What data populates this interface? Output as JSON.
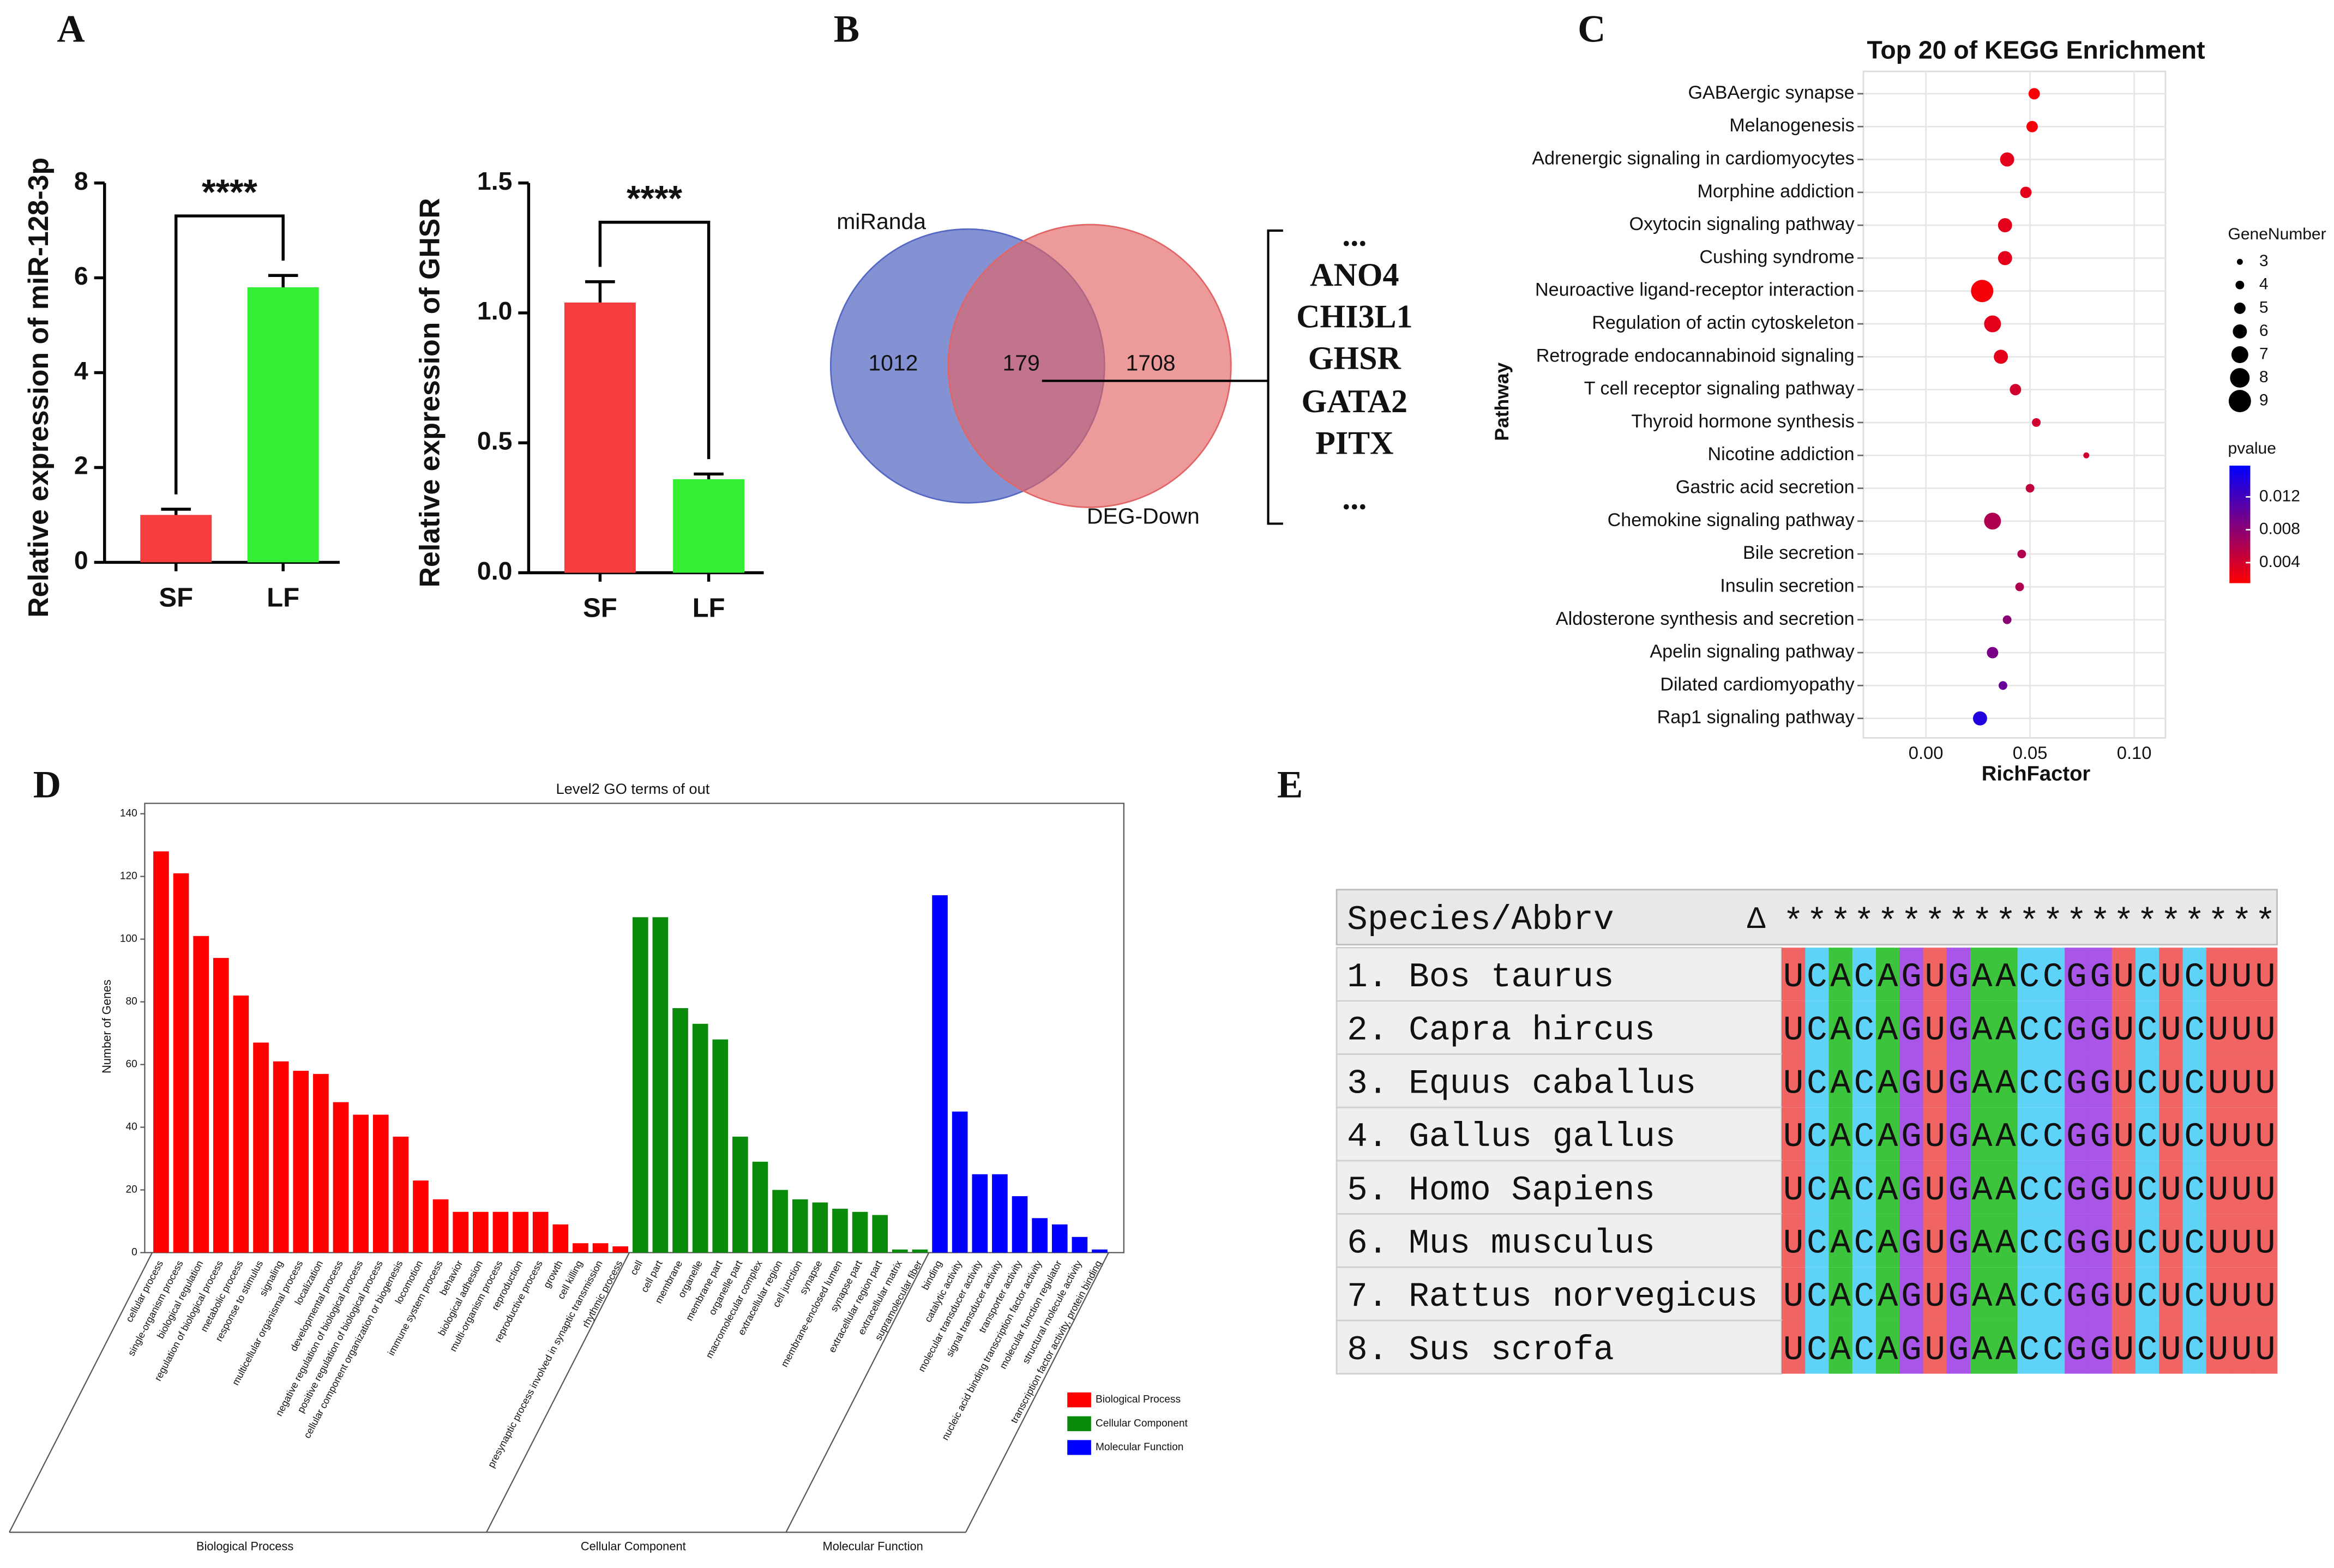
{
  "chart_data": [
    {
      "type": "bar",
      "panel": "A",
      "ylabel": "Relative expression of miR-128-3p",
      "categories": [
        "SF",
        "LF"
      ],
      "values": [
        1.0,
        5.8
      ],
      "errors": [
        0.12,
        0.25
      ],
      "colors": [
        "#f73e3e",
        "#33ee33"
      ],
      "ylim": [
        0,
        8
      ],
      "yticks": [
        0,
        2,
        4,
        6,
        8
      ],
      "significance": "****"
    },
    {
      "type": "bar",
      "ylabel": "Relative expression of GHSR",
      "categories": [
        "SF",
        "LF"
      ],
      "values": [
        1.04,
        0.36
      ],
      "errors": [
        0.08,
        0.02
      ],
      "colors": [
        "#f73e3e",
        "#33ee33"
      ],
      "ylim": [
        0,
        1.5
      ],
      "yticks": [
        {
          "value": 0,
          "label": "0.0"
        },
        {
          "value": 0.5,
          "label": "0.5"
        },
        {
          "value": 1,
          "label": "1.0"
        },
        {
          "value": 1.5,
          "label": "1.5"
        }
      ],
      "significance": "****"
    },
    {
      "type": "venn",
      "panel": "B",
      "sets": [
        {
          "name": "miRanda",
          "color": "#5468c4"
        },
        {
          "name": "DEG-Down",
          "color": "#e26464"
        }
      ],
      "values": [
        1012,
        179,
        1708
      ],
      "genes": [
        {
          "name": "...",
          "color": "#111111"
        },
        {
          "name": "ANO4",
          "color": "#111111"
        },
        {
          "name": "CHI3L1",
          "color": "#111111"
        },
        {
          "name": "GHSR",
          "color": "#e8232a"
        },
        {
          "name": "GATA2",
          "color": "#111111"
        },
        {
          "name": "PITX",
          "color": "#111111"
        },
        {
          "name": "...",
          "color": "#111111"
        }
      ]
    },
    {
      "type": "scatter",
      "panel": "C",
      "title": "Top 20 of KEGG Enrichment",
      "xlabel": "RichFactor",
      "ylabel": "Pathway",
      "categories": [
        "GABAergic synapse",
        "Melanogenesis",
        "Adrenergic signaling in cardiomyocytes",
        "Morphine addiction",
        "Oxytocin signaling pathway",
        "Cushing syndrome",
        "Neuroactive ligand-receptor interaction",
        "Regulation of actin cytoskeleton",
        "Retrograde endocannabinoid signaling",
        "T cell receptor signaling pathway",
        "Thyroid hormone synthesis",
        "Nicotine addiction",
        "Gastric acid secretion",
        "Chemokine signaling pathway",
        "Bile secretion",
        "Insulin secretion",
        "Aldosterone synthesis and secretion",
        "Apelin signaling pathway",
        "Dilated cardiomyopathy",
        "Rap1 signaling pathway"
      ],
      "values": [
        0.052,
        0.051,
        0.039,
        0.048,
        0.038,
        0.038,
        0.027,
        0.032,
        0.036,
        0.043,
        0.053,
        0.077,
        0.05,
        0.032,
        0.046,
        0.045,
        0.039,
        0.032,
        0.037,
        0.026
      ],
      "sizes": [
        5,
        5,
        6,
        5,
        6,
        6,
        9,
        7,
        6,
        5,
        4,
        3,
        4,
        7,
        4,
        4,
        4,
        5,
        4,
        6
      ],
      "pvalues": [
        0.002,
        0.002,
        0.003,
        0.003,
        0.003,
        0.003,
        0.002,
        0.003,
        0.003,
        0.004,
        0.004,
        0.004,
        0.005,
        0.006,
        0.006,
        0.006,
        0.008,
        0.009,
        0.01,
        0.014
      ],
      "xlim": [
        -0.03,
        0.115
      ],
      "xticks": [
        {
          "value": 0,
          "label": "0.00"
        },
        {
          "value": 0.05,
          "label": "0.05"
        },
        {
          "value": 0.1,
          "label": "0.10"
        }
      ],
      "size_title": "GeneNumber",
      "size_ticks": [
        3,
        4,
        5,
        6,
        7,
        8,
        9
      ],
      "color_title": "pvalue",
      "clim": [
        0.0015,
        0.0158
      ],
      "color_ticks": [
        0.004,
        0.008,
        0.012
      ],
      "colormap": [
        "#ff0000",
        "#0000ff"
      ],
      "grid": true
    },
    {
      "type": "grouped_bar",
      "panel": "D",
      "title": "Level2 GO terms of out",
      "ylabel": "Number of Genes",
      "ylim": [
        0,
        140
      ],
      "yticks": [
        0,
        20,
        40,
        60,
        80,
        100,
        120,
        140
      ],
      "series": [
        {
          "name": "Biological Process",
          "color": "#ff0000",
          "categories": [
            "cellular process",
            "single-organism process",
            "biological regulation",
            "regulation of biological process",
            "metabolic process",
            "response to stimulus",
            "signaling",
            "multicellular organismal process",
            "localization",
            "developmental process",
            "negative regulation of biological process",
            "positive regulation of biological process",
            "cellular component organization or biogenesis",
            "locomotion",
            "immune system process",
            "behavior",
            "biological adhesion",
            "multi-organism process",
            "reproduction",
            "reproductive process",
            "growth",
            "cell killing",
            "presynaptic process involved in synaptic transmission",
            "rhythmic process"
          ],
          "values": [
            128,
            121,
            101,
            94,
            82,
            67,
            61,
            58,
            57,
            48,
            44,
            44,
            37,
            23,
            17,
            13,
            13,
            13,
            13,
            13,
            9,
            3,
            3,
            2
          ]
        },
        {
          "name": "Cellular Component",
          "color": "#0a8a0a",
          "categories": [
            "cell",
            "cell part",
            "membrane",
            "organelle",
            "membrane part",
            "organelle part",
            "macromolecular complex",
            "extracellular region",
            "cell junction",
            "synapse",
            "membrane-enclosed lumen",
            "synapse part",
            "extracellular region part",
            "extracellular matrix",
            "supramolecular fiber"
          ],
          "values": [
            107,
            107,
            78,
            73,
            68,
            37,
            29,
            20,
            17,
            16,
            14,
            13,
            12,
            1,
            1
          ]
        },
        {
          "name": "Molecular Function",
          "color": "#0000ff",
          "categories": [
            "binding",
            "catalytic activity",
            "molecular transducer activity",
            "signal transducer activity",
            "transporter activity",
            "nucleic acid binding transcription factor activity",
            "molecular function regulator",
            "structural molecule activity",
            "transcription factor activity, protein binding"
          ],
          "values": [
            114,
            45,
            25,
            25,
            18,
            11,
            9,
            5,
            1
          ]
        }
      ]
    },
    {
      "type": "alignment",
      "panel": "E",
      "header": {
        "species": "Species/Abbrv",
        "delta": "Δ",
        "consensus": "*********************"
      },
      "rows": [
        {
          "label": "1. Bos taurus",
          "sequence": "UCACAGUGAACCGGUCUCUUU"
        },
        {
          "label": "2. Capra hircus",
          "sequence": "UCACAGUGAACCGGUCUCUUU"
        },
        {
          "label": "3. Equus caballus",
          "sequence": "UCACAGUGAACCGGUCUCUUU"
        },
        {
          "label": "4. Gallus gallus",
          "sequence": "UCACAGUGAACCGGUCUCUUU"
        },
        {
          "label": "5. Homo Sapiens",
          "sequence": "UCACAGUGAACCGGUCUCUUU"
        },
        {
          "label": "6. Mus musculus",
          "sequence": "UCACAGUGAACCGGUCUCUUU"
        },
        {
          "label": "7. Rattus norvegicus",
          "sequence": "UCACAGUGAACCGGUCUCUUU"
        },
        {
          "label": "8. Sus scrofa",
          "sequence": "UCACAGUGAACCGGUCUCUUU"
        }
      ],
      "nucleotide_colors": {
        "U": "#f06464",
        "C": "#5fd2f7",
        "A": "#3cc43c",
        "G": "#a855e8"
      }
    }
  ]
}
